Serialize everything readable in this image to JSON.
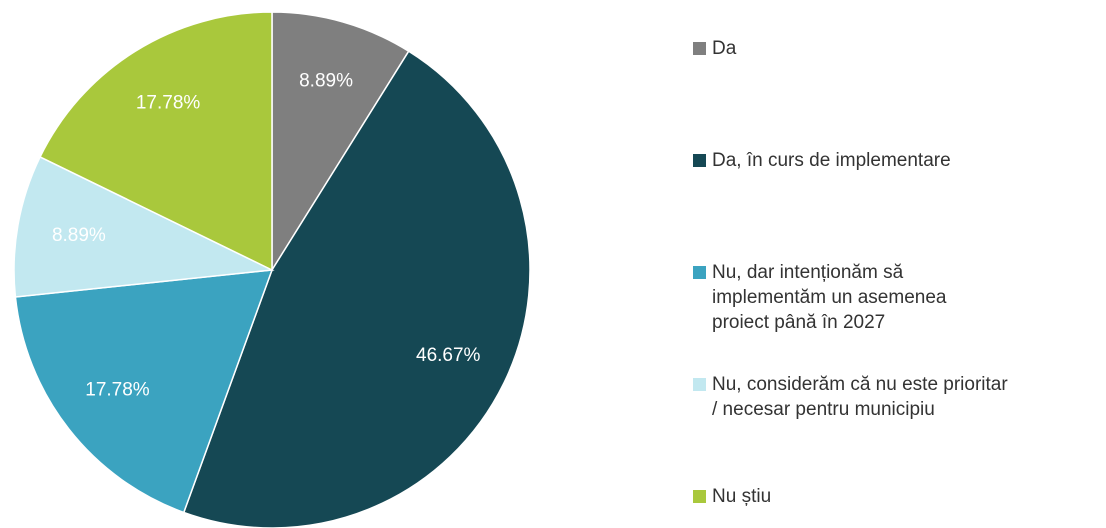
{
  "chart_data": {
    "type": "pie",
    "categories": [
      "Da",
      "Da, în curs de implementare",
      "Nu, dar intenționăm să\nimplementăm un asemenea\nproiect până în 2027",
      "Nu, considerăm că nu este prioritar\n/ necesar pentru municipiu",
      "Nu știu"
    ],
    "values": [
      8.89,
      46.67,
      17.78,
      8.89,
      17.78
    ],
    "value_labels": [
      "8.89%",
      "46.67%",
      "17.78%",
      "8.89%",
      "17.78%"
    ],
    "colors": [
      "#7f7f7f",
      "#154854",
      "#3ba3c0",
      "#c2e8f0",
      "#a9c83c"
    ],
    "legend": "right"
  }
}
